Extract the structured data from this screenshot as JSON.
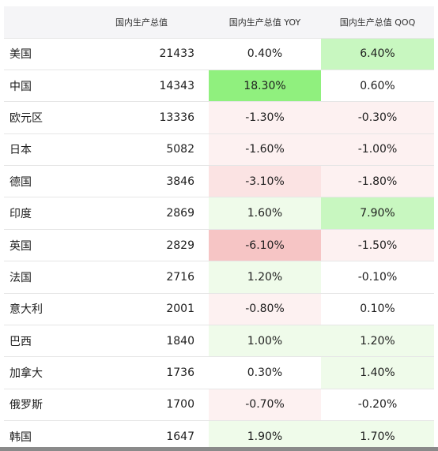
{
  "headers": {
    "country": "",
    "gdp": "国内生产总值",
    "yoy": "国内生产总值 YOY",
    "qoq": "国内生产总值 QOQ"
  },
  "colors": {
    "header_bg": "#f5f5f7",
    "positive_strong": "#90f07e",
    "positive_medium": "#c8f7c0",
    "positive_light": "#effbea",
    "negative_strong": "#f6c5c5",
    "negative_medium": "#fbe3e3",
    "negative_light": "#fdf1f1",
    "neutral": "#ffffff"
  },
  "rows": [
    {
      "country": "美国",
      "gdp": "21433",
      "yoy": "0.40%",
      "qoq": "6.40%",
      "yoy_bg": "neutral",
      "qoq_bg": "positive_medium"
    },
    {
      "country": "中国",
      "gdp": "14343",
      "yoy": "18.30%",
      "qoq": "0.60%",
      "yoy_bg": "positive_strong",
      "qoq_bg": "neutral"
    },
    {
      "country": "欧元区",
      "gdp": "13336",
      "yoy": "-1.30%",
      "qoq": "-0.30%",
      "yoy_bg": "negative_light",
      "qoq_bg": "negative_light"
    },
    {
      "country": "日本",
      "gdp": "5082",
      "yoy": "-1.60%",
      "qoq": "-1.00%",
      "yoy_bg": "negative_light",
      "qoq_bg": "negative_light"
    },
    {
      "country": "德国",
      "gdp": "3846",
      "yoy": "-3.10%",
      "qoq": "-1.80%",
      "yoy_bg": "negative_medium",
      "qoq_bg": "negative_light"
    },
    {
      "country": "印度",
      "gdp": "2869",
      "yoy": "1.60%",
      "qoq": "7.90%",
      "yoy_bg": "positive_light",
      "qoq_bg": "positive_medium"
    },
    {
      "country": "英国",
      "gdp": "2829",
      "yoy": "-6.10%",
      "qoq": "-1.50%",
      "yoy_bg": "negative_strong",
      "qoq_bg": "negative_light"
    },
    {
      "country": "法国",
      "gdp": "2716",
      "yoy": "1.20%",
      "qoq": "-0.10%",
      "yoy_bg": "positive_light",
      "qoq_bg": "neutral"
    },
    {
      "country": "意大利",
      "gdp": "2001",
      "yoy": "-0.80%",
      "qoq": "0.10%",
      "yoy_bg": "negative_light",
      "qoq_bg": "neutral"
    },
    {
      "country": "巴西",
      "gdp": "1840",
      "yoy": "1.00%",
      "qoq": "1.20%",
      "yoy_bg": "positive_light",
      "qoq_bg": "positive_light"
    },
    {
      "country": "加拿大",
      "gdp": "1736",
      "yoy": "0.30%",
      "qoq": "1.40%",
      "yoy_bg": "neutral",
      "qoq_bg": "positive_light"
    },
    {
      "country": "俄罗斯",
      "gdp": "1700",
      "yoy": "-0.70%",
      "qoq": "-0.20%",
      "yoy_bg": "negative_light",
      "qoq_bg": "neutral"
    },
    {
      "country": "韩国",
      "gdp": "1647",
      "yoy": "1.90%",
      "qoq": "1.70%",
      "yoy_bg": "positive_light",
      "qoq_bg": "positive_light"
    }
  ]
}
